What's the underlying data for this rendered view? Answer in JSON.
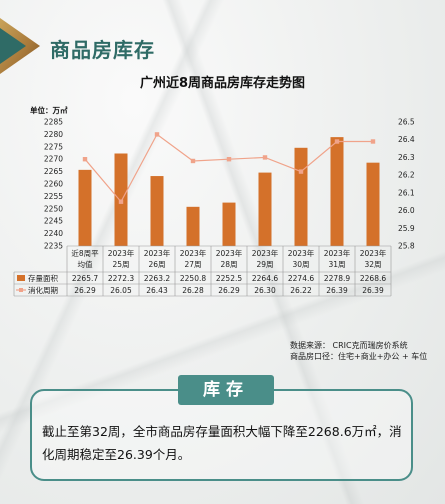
{
  "header": {
    "section_title": "商品房库存"
  },
  "chart_data": {
    "type": "bar+line",
    "title": "广州近8周商品房库存走势图",
    "unit_label": "单位：万㎡",
    "categories": [
      [
        "近8周平",
        "均值"
      ],
      [
        "2023年",
        "25周"
      ],
      [
        "2023年",
        "26周"
      ],
      [
        "2023年",
        "27周"
      ],
      [
        "2023年",
        "28周"
      ],
      [
        "2023年",
        "29周"
      ],
      [
        "2023年",
        "30周"
      ],
      [
        "2023年",
        "31周"
      ],
      [
        "2023年",
        "32周"
      ]
    ],
    "left_axis": {
      "min": 2235,
      "max": 2285,
      "step": 5
    },
    "right_axis": {
      "min": 25.8,
      "max": 26.5,
      "step": 0.1
    },
    "series": [
      {
        "name": "存量面积",
        "type": "bar",
        "axis": "left",
        "color": "#d4712a",
        "values": [
          2265.7,
          2272.3,
          2263.2,
          2250.8,
          2252.5,
          2264.6,
          2274.6,
          2278.9,
          2268.6
        ],
        "labels": [
          "2265.7",
          "2272.3",
          "2263.2",
          "2250.8",
          "2252.5",
          "2264.6",
          "2274.6",
          "2278.9",
          "2268.6"
        ]
      },
      {
        "name": "消化周期",
        "type": "line",
        "axis": "right",
        "color": "#f0a38a",
        "values": [
          26.29,
          26.05,
          26.43,
          26.28,
          26.29,
          26.3,
          26.22,
          26.39,
          26.39
        ],
        "labels": [
          "26.29",
          "26.05",
          "26.43",
          "26.28",
          "26.29",
          "26.30",
          "26.22",
          "26.39",
          "26.39"
        ]
      }
    ]
  },
  "source": {
    "line1": "数据来源：  CRIC克而瑞房价系统",
    "line2": "商品房口径：住宅+商业+办公  + 车位"
  },
  "summary": {
    "tag": "库存",
    "text": "截止至第32周，全市商品房存量面积大幅下降至2268.6万㎡，消化周期稳定至26.39个月。"
  }
}
